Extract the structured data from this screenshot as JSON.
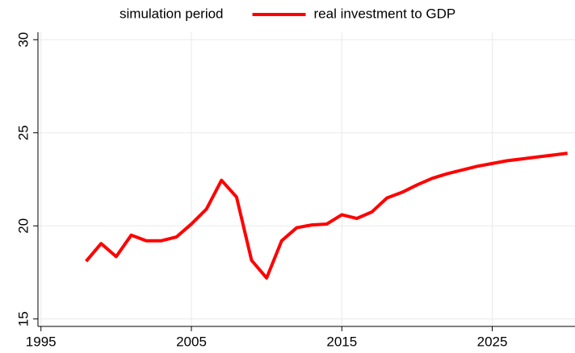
{
  "chart_data": {
    "type": "line",
    "x": [
      1998,
      1999,
      2000,
      2001,
      2002,
      2003,
      2004,
      2005,
      2006,
      2007,
      2008,
      2009,
      2010,
      2011,
      2012,
      2013,
      2014,
      2015,
      2016,
      2017,
      2018,
      2019,
      2020,
      2021,
      2022,
      2023,
      2024,
      2025,
      2026,
      2027,
      2028,
      2029,
      2030
    ],
    "series": [
      {
        "name": "simulation period"
      },
      {
        "name": "real investment to GDP",
        "color": "#ff0000",
        "values": [
          18.1,
          19.05,
          18.35,
          19.5,
          19.2,
          19.2,
          19.4,
          20.1,
          20.9,
          22.45,
          21.55,
          18.15,
          17.2,
          19.2,
          19.9,
          20.05,
          20.1,
          20.6,
          20.4,
          20.75,
          21.5,
          21.8,
          22.2,
          22.55,
          22.8,
          23.0,
          23.2,
          23.35,
          23.5,
          23.6,
          23.7,
          23.8,
          23.9
        ]
      }
    ],
    "xlim": [
      1994.8,
      2030.5
    ],
    "xticks": [
      1995,
      2005,
      2015,
      2025
    ],
    "ylim": [
      14.6,
      30.4
    ],
    "yticks": [
      15,
      20,
      25,
      30
    ],
    "grid": true,
    "legend": "top"
  }
}
